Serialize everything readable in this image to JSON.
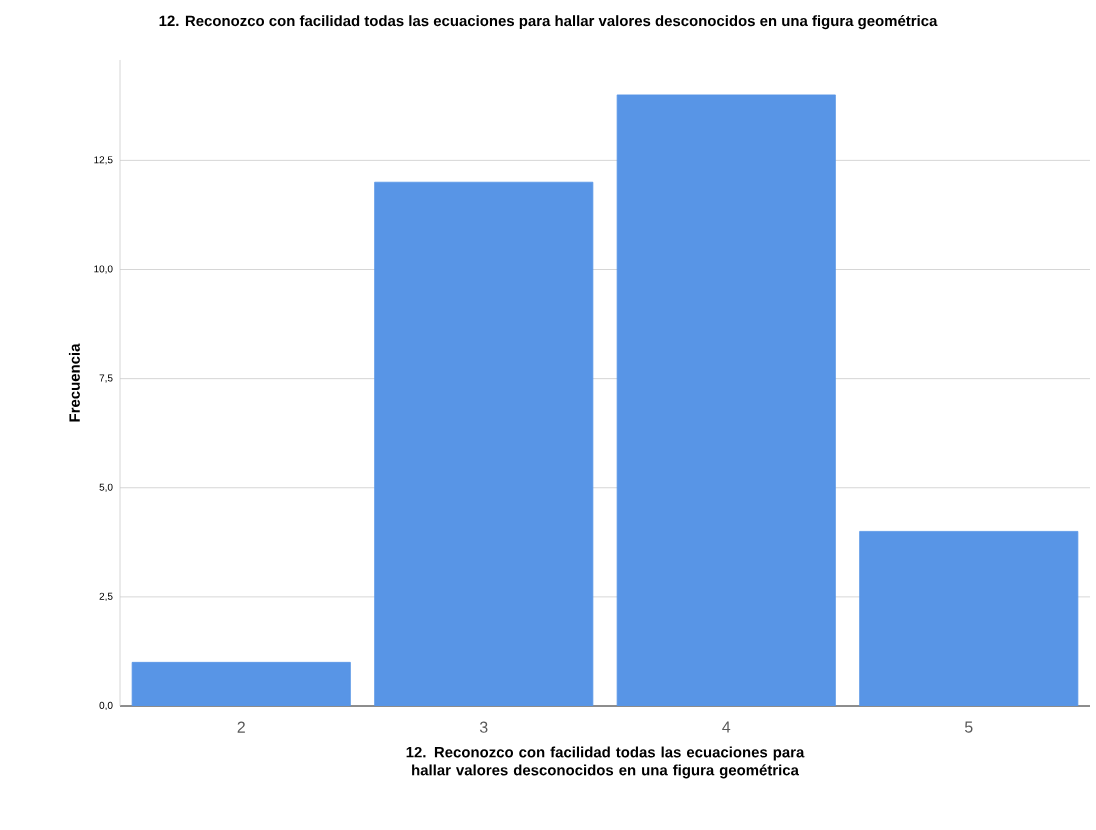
{
  "chart_data": {
    "type": "bar",
    "title": "12. Reconozco con facilidad todas las ecuaciones para hallar valores desconocidos en una figura geométrica",
    "xlabel": "12. Reconozco con facilidad todas las ecuaciones para hallar valores desconocidos en una figura geométrica",
    "ylabel": "Frecuencia",
    "categories": [
      "2",
      "3",
      "4",
      "5"
    ],
    "values": [
      1,
      12,
      14,
      4
    ],
    "color": "#5895e6",
    "ylim": [
      0,
      14.8
    ],
    "yticks": [
      {
        "value": 0,
        "label": "0,0"
      },
      {
        "value": 2.5,
        "label": "2,5"
      },
      {
        "value": 5,
        "label": "5,0"
      },
      {
        "value": 7.5,
        "label": "7,5"
      },
      {
        "value": 10,
        "label": "10,0"
      },
      {
        "value": 12.5,
        "label": "12,5"
      }
    ],
    "grid": "y"
  }
}
